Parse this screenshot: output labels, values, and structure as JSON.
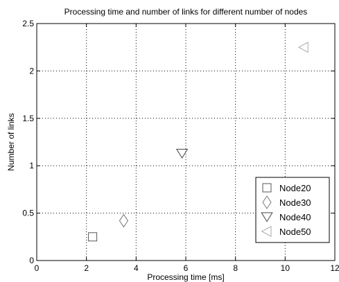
{
  "chart_data": {
    "type": "scatter",
    "title": "Processing time and number of links for different number of nodes",
    "xlabel": "Processing time [ms]",
    "ylabel": "Number of links",
    "xlim": [
      0,
      12
    ],
    "ylim": [
      0,
      2.5
    ],
    "xticks": [
      0,
      2,
      4,
      6,
      8,
      10,
      12
    ],
    "xtick_labels": [
      "0",
      "2",
      "4",
      "6",
      "8",
      "10",
      "12"
    ],
    "yticks": [
      0,
      0.5,
      1,
      1.5,
      2,
      2.5
    ],
    "ytick_labels": [
      "0",
      "0.5",
      "1",
      "1.5",
      "2",
      "2.5"
    ],
    "grid": true,
    "legend_position": "bottom-right",
    "series": [
      {
        "name": "Node20",
        "marker": "square",
        "color": "#555555",
        "x": [
          2.25
        ],
        "y": [
          0.25
        ]
      },
      {
        "name": "Node30",
        "marker": "diamond",
        "color": "#777777",
        "x": [
          3.5
        ],
        "y": [
          0.42
        ]
      },
      {
        "name": "Node40",
        "marker": "triangle-down",
        "color": "#444444",
        "x": [
          5.85
        ],
        "y": [
          1.13
        ]
      },
      {
        "name": "Node50",
        "marker": "triangle-left",
        "color": "#aaaaaa",
        "x": [
          10.75
        ],
        "y": [
          2.25
        ]
      }
    ]
  }
}
